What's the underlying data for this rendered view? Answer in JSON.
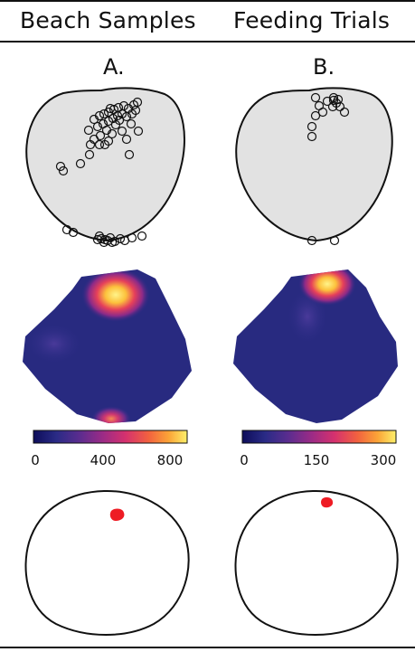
{
  "columns": [
    {
      "title": "Beach Samples",
      "letter": "A.",
      "colorbar_ticks": [
        "0",
        "400",
        "800"
      ]
    },
    {
      "title": "Feeding Trials",
      "letter": "B.",
      "colorbar_ticks": [
        "0",
        "150",
        "300"
      ]
    }
  ],
  "colors": {
    "outline_fill": "#e2e2e2",
    "heat_low": "#1a1a64",
    "heat_mid": "#c0287a",
    "heat_high": "#fff06a",
    "blob": "#ee1c24"
  },
  "colormap": [
    "#0d0d5a",
    "#2a2b86",
    "#5b2c8f",
    "#9b2b86",
    "#d5316e",
    "#f2623f",
    "#fba437",
    "#fdf06a"
  ]
}
